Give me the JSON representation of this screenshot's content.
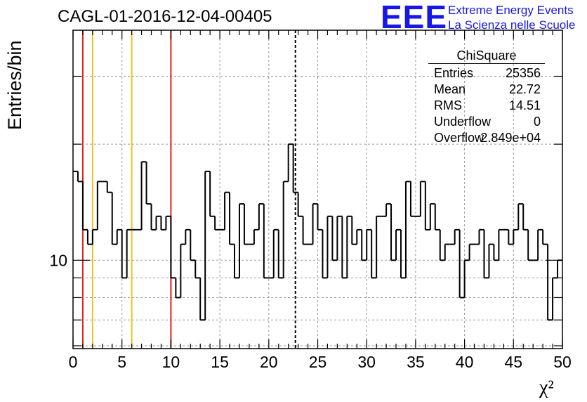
{
  "header": {
    "title": "CAGL-01-2016-12-04-00405"
  },
  "logo": {
    "mark": "EEE",
    "line1": "Extreme Energy Events",
    "line2": "La Scienza nelle Scuole",
    "color": "#1818e6"
  },
  "stats": {
    "title": "ChiSquare",
    "rows": [
      {
        "key": "Entries",
        "value": "25356"
      },
      {
        "key": "Mean",
        "value": "22.72"
      },
      {
        "key": "RMS",
        "value": "14.51"
      },
      {
        "key": "Underflow",
        "value": "0"
      },
      {
        "key": "Overflow",
        "value": "2.849e+04"
      }
    ]
  },
  "chart_data": {
    "type": "histogram",
    "xlabel": "χ²",
    "ylabel": "Entries/bin",
    "xlim": [
      0,
      50
    ],
    "ylim": [
      5.9,
      39.5
    ],
    "yscale": "log",
    "bin_width": 0.5,
    "xticks": [
      0,
      5,
      10,
      15,
      20,
      25,
      30,
      35,
      40,
      45,
      50
    ],
    "yticks": [
      10
    ],
    "grid": true,
    "values": [
      17,
      16,
      12,
      11,
      12,
      16,
      16,
      15,
      11,
      12,
      9,
      12,
      12,
      12,
      18,
      14,
      12,
      13,
      12,
      13,
      9,
      8,
      11,
      12,
      10,
      9,
      7,
      17,
      13,
      12,
      12,
      15,
      11,
      9,
      14,
      11,
      11,
      12,
      14,
      9,
      9,
      12,
      9,
      16,
      20,
      15,
      13,
      11,
      11,
      14,
      12,
      9,
      13,
      10,
      13,
      9,
      13,
      11,
      12,
      10,
      12,
      9,
      13,
      13,
      14,
      10,
      12,
      9,
      16,
      13,
      13,
      16,
      12,
      14,
      12,
      10,
      11,
      11,
      12,
      8,
      10,
      11,
      11,
      12,
      9,
      11,
      10,
      12,
      12,
      11,
      12,
      14,
      12,
      10,
      10,
      12,
      11,
      7,
      9,
      10
    ],
    "vertical_lines": [
      {
        "x": 1,
        "color": "#e02020",
        "style": "solid"
      },
      {
        "x": 2,
        "color": "#f0c020",
        "style": "solid"
      },
      {
        "x": 6,
        "color": "#f0c020",
        "style": "solid"
      },
      {
        "x": 10,
        "color": "#e02020",
        "style": "solid"
      },
      {
        "x": 22.72,
        "color": "#000000",
        "style": "dashed"
      }
    ]
  }
}
